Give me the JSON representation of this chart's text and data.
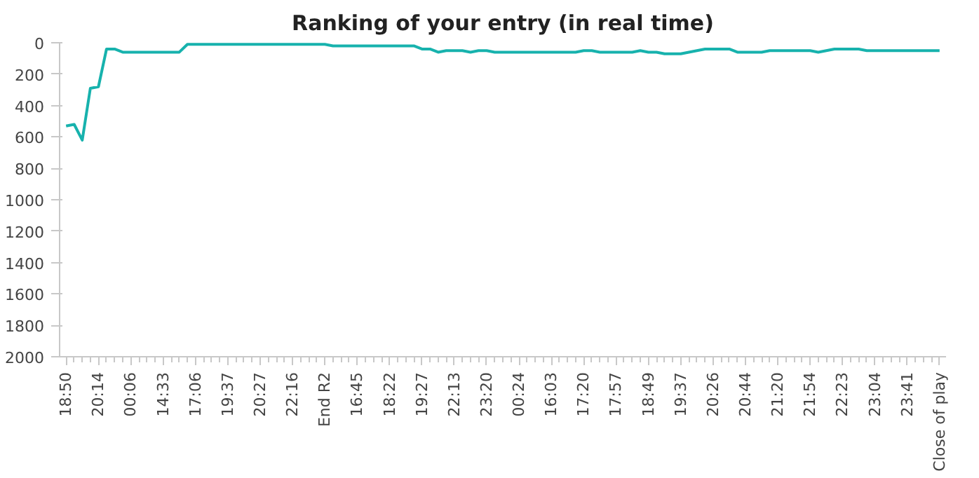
{
  "chart_data": {
    "type": "line",
    "title": "Ranking of your entry (in real time)",
    "categories": [
      "18:50",
      null,
      null,
      null,
      "20:14",
      null,
      null,
      null,
      "00:06",
      null,
      null,
      null,
      "14:33",
      null,
      null,
      null,
      "17:06",
      null,
      null,
      null,
      "19:37",
      null,
      null,
      null,
      "20:27",
      null,
      null,
      null,
      "22:16",
      null,
      null,
      null,
      "End R2",
      null,
      null,
      null,
      "16:45",
      null,
      null,
      null,
      "18:22",
      null,
      null,
      null,
      "19:27",
      null,
      null,
      null,
      "22:13",
      null,
      null,
      null,
      "23:20",
      null,
      null,
      null,
      "00:24",
      null,
      null,
      null,
      "16:03",
      null,
      null,
      null,
      "17:20",
      null,
      null,
      null,
      "17:57",
      null,
      null,
      null,
      "18:49",
      null,
      null,
      null,
      "19:37",
      null,
      null,
      null,
      "20:26",
      null,
      null,
      null,
      "20:44",
      null,
      null,
      null,
      "21:20",
      null,
      null,
      null,
      "21:54",
      null,
      null,
      null,
      "22:23",
      null,
      null,
      null,
      "23:04",
      null,
      null,
      null,
      "23:41",
      null,
      null,
      null,
      "Close of play"
    ],
    "series": [
      {
        "color": "#17b2ad",
        "values": [
          530,
          520,
          620,
          290,
          280,
          40,
          40,
          60,
          60,
          60,
          60,
          60,
          60,
          60,
          60,
          10,
          10,
          10,
          10,
          10,
          10,
          10,
          10,
          10,
          10,
          10,
          10,
          10,
          10,
          10,
          10,
          10,
          10,
          20,
          20,
          20,
          20,
          20,
          20,
          20,
          20,
          20,
          20,
          20,
          40,
          40,
          60,
          50,
          50,
          50,
          60,
          50,
          50,
          60,
          60,
          60,
          60,
          60,
          60,
          60,
          60,
          60,
          60,
          60,
          50,
          50,
          60,
          60,
          60,
          60,
          60,
          50,
          60,
          60,
          70,
          70,
          70,
          60,
          50,
          40,
          40,
          40,
          40,
          60,
          60,
          60,
          60,
          50,
          50,
          50,
          50,
          50,
          50,
          60,
          50,
          40,
          40,
          40,
          40,
          50,
          50,
          50,
          50,
          50,
          50,
          50,
          50,
          50,
          50
        ]
      }
    ],
    "ylim": [
      2000,
      0
    ],
    "yticks": [
      0,
      200,
      400,
      600,
      800,
      1000,
      1200,
      1400,
      1600,
      1800,
      2000
    ],
    "line_style": "solid"
  }
}
